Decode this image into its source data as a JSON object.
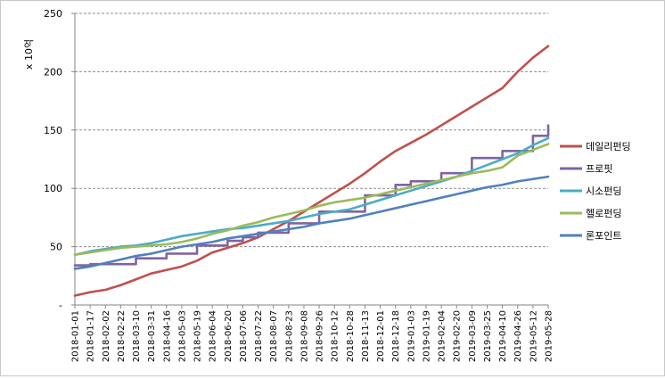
{
  "chart_data": {
    "type": "line",
    "unit_label": "x 10억",
    "ylim": [
      0,
      250
    ],
    "yticks": [
      0,
      50,
      100,
      150,
      200,
      250
    ],
    "ytick_labels": [
      "-",
      "50",
      "100",
      "150",
      "200",
      "250"
    ],
    "grid": "horizontal dashed",
    "legend_position": "right",
    "x": [
      "2018-01-01",
      "2018-01-17",
      "2018-02-02",
      "2018-02-22",
      "2018-03-10",
      "2018-03-31",
      "2018-04-16",
      "2018-05-03",
      "2018-05-19",
      "2018-06-04",
      "2018-06-20",
      "2018-07-06",
      "2018-07-22",
      "2018-08-07",
      "2018-08-23",
      "2018-09-08",
      "2018-09-26",
      "2018-10-12",
      "2018-10-28",
      "2018-11-13",
      "2018-12-01",
      "2018-12-18",
      "2019-01-03",
      "2019-01-19",
      "2019-02-04",
      "2019-02-20",
      "2019-03-09",
      "2019-03-25",
      "2019-04-10",
      "2019-04-26",
      "2019-05-12",
      "2019-05-28"
    ],
    "series": [
      {
        "name": "데일리펀딩",
        "color": "#c0504d",
        "values": [
          8,
          11,
          13,
          17,
          22,
          27,
          30,
          33,
          38,
          45,
          49,
          53,
          58,
          65,
          72,
          80,
          88,
          96,
          104,
          113,
          123,
          132,
          139,
          146,
          154,
          162,
          170,
          178,
          186,
          200,
          212,
          222
        ]
      },
      {
        "name": "프로핏",
        "color": "#8064a2",
        "values": [
          34,
          35,
          35,
          35,
          40,
          40,
          44,
          44,
          51,
          51,
          55,
          58,
          62,
          62,
          70,
          70,
          80,
          80,
          80,
          94,
          94,
          103,
          106,
          106,
          113,
          113,
          126,
          126,
          132,
          132,
          145,
          154
        ]
      },
      {
        "name": "시소펀딩",
        "color": "#4bacc6",
        "values": [
          43,
          46,
          48,
          50,
          51,
          53,
          56,
          59,
          61,
          63,
          65,
          66,
          68,
          70,
          72,
          75,
          78,
          80,
          82,
          86,
          90,
          94,
          98,
          102,
          106,
          110,
          115,
          120,
          125,
          130,
          137,
          143
        ]
      },
      {
        "name": "헬로펀딩",
        "color": "#9bbb59",
        "values": [
          43,
          45,
          47,
          49,
          50,
          51,
          52,
          54,
          57,
          61,
          64,
          68,
          71,
          75,
          78,
          81,
          85,
          88,
          90,
          92,
          95,
          98,
          101,
          104,
          107,
          110,
          113,
          115,
          118,
          128,
          133,
          138
        ]
      },
      {
        "name": "론포인트",
        "color": "#4f81bd",
        "values": [
          31,
          33,
          36,
          39,
          42,
          44,
          47,
          50,
          52,
          54,
          57,
          59,
          61,
          63,
          65,
          67,
          70,
          72,
          74,
          77,
          80,
          83,
          86,
          89,
          92,
          95,
          98,
          101,
          103,
          106,
          108,
          110
        ]
      }
    ]
  }
}
